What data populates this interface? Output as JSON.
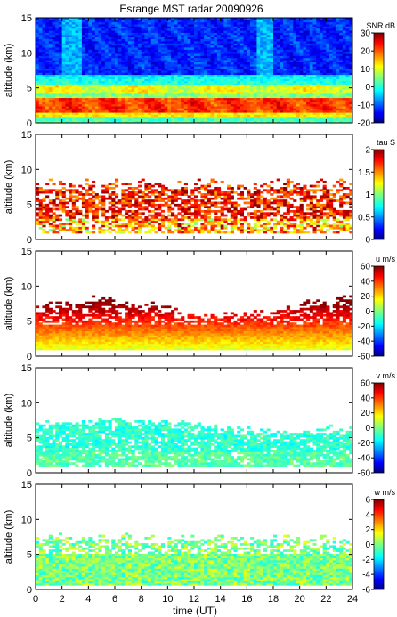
{
  "chart_data": {
    "title": "Esrange MST radar 20090926",
    "type": "heatmap",
    "xlabel": "time (UT)",
    "xlim": [
      0,
      24
    ],
    "xticks": [
      0,
      2,
      4,
      6,
      8,
      10,
      12,
      14,
      16,
      18,
      20,
      22,
      24
    ],
    "panels": [
      {
        "ylabel": "altitude (km)",
        "ylim": [
          0,
          15
        ],
        "yticks": [
          0,
          5,
          10,
          15
        ],
        "colorbar": {
          "label": "SNR dB",
          "range": [
            -20,
            30
          ],
          "ticks": [
            30,
            20,
            10,
            0,
            -10,
            -20
          ]
        }
      },
      {
        "ylabel": "altitude (km)",
        "ylim": [
          0,
          15
        ],
        "yticks": [
          0,
          5,
          10,
          15
        ],
        "colorbar": {
          "label": "tau S",
          "range": [
            0,
            2
          ],
          "ticks": [
            "2",
            "1.5",
            "1",
            "0.5",
            "0"
          ]
        }
      },
      {
        "ylabel": "altitude (km)",
        "ylim": [
          0,
          15
        ],
        "yticks": [
          0,
          5,
          10,
          15
        ],
        "colorbar": {
          "label": "u m/s",
          "range": [
            -60,
            60
          ],
          "ticks": [
            60,
            40,
            20,
            0,
            -20,
            -40,
            -60
          ]
        }
      },
      {
        "ylabel": "altitude (km)",
        "ylim": [
          0,
          15
        ],
        "yticks": [
          0,
          5,
          10,
          15
        ],
        "colorbar": {
          "label": "v m/s",
          "range": [
            -60,
            60
          ],
          "ticks": [
            60,
            40,
            20,
            0,
            -20,
            -40,
            -60
          ]
        }
      },
      {
        "ylabel": "altitude (km)",
        "ylim": [
          0,
          15
        ],
        "yticks": [
          0,
          5,
          10,
          15
        ],
        "colorbar": {
          "label": "w m/s",
          "range": [
            -6,
            6
          ],
          "ticks": [
            6,
            4,
            2,
            0,
            -2,
            -4,
            -6
          ]
        }
      }
    ]
  }
}
